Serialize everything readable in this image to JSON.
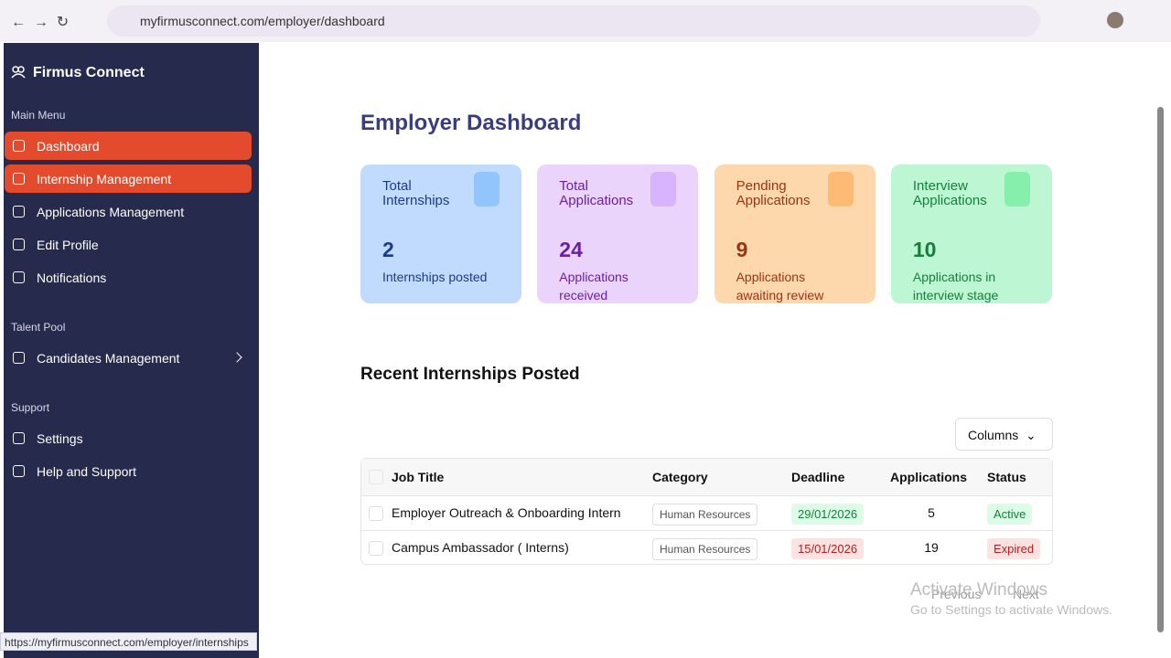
{
  "browser": {
    "url": "myfirmusconnect.com/employer/dashboard",
    "status_url": "https://myfirmusconnect.com/employer/internships"
  },
  "sidebar": {
    "brand": "Firmus Connect",
    "sections": [
      {
        "heading": "Main Menu",
        "items": [
          "Dashboard",
          "Internship Management",
          "Applications Management",
          "Edit Profile",
          "Notifications"
        ]
      },
      {
        "heading": "Talent Pool",
        "items": [
          "Candidates Management"
        ]
      },
      {
        "heading": "Support",
        "items": [
          "Settings",
          "Help and Support"
        ]
      }
    ]
  },
  "main": {
    "title": "Employer Dashboard",
    "cards": [
      {
        "title": "Total Internships",
        "value": 2,
        "label": "Internships posted"
      },
      {
        "title": "Total Applications",
        "value": 24,
        "label": "Applications received"
      },
      {
        "title": "Pending Applications",
        "value": 9,
        "label": "Applications awaiting review"
      },
      {
        "title": "Interview Applications",
        "value": 10,
        "label": "Applications in interview stage"
      }
    ],
    "section_title": "Recent Internships Posted",
    "columns_button": "Columns",
    "table": {
      "headers": [
        "Job Title",
        "Category",
        "Deadline",
        "Applications",
        "Status"
      ],
      "rows": [
        [
          "Employer Outreach & Onboarding Intern",
          "Human Resources",
          "29/01/2026",
          5,
          "Active"
        ],
        [
          "Campus Ambassador ( Interns)",
          "Human Resources",
          "15/01/2026",
          19,
          "Expired"
        ]
      ]
    },
    "pagination": {
      "previous": "Previous",
      "next": "Next"
    }
  },
  "watermark": {
    "title": "Activate Windows",
    "subtitle": "Go to Settings to activate Windows."
  }
}
